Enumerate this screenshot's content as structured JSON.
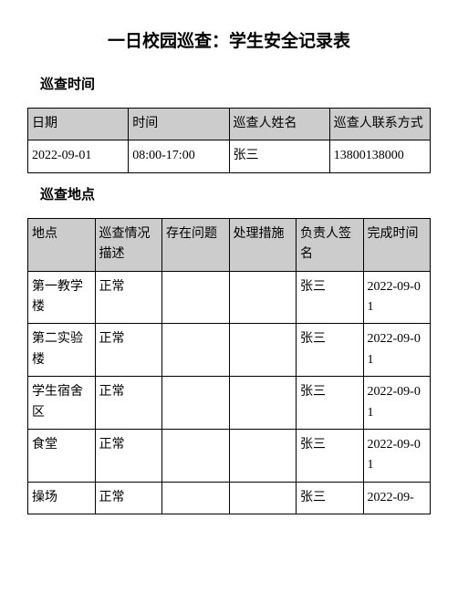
{
  "title": "一日校园巡查：学生安全记录表",
  "section1": {
    "header": "巡查时间",
    "columns": [
      "日期",
      "时间",
      "巡查人姓名",
      "巡查人联系方式"
    ],
    "rows": [
      [
        "2022-09-01",
        "08:00-17:00",
        "张三",
        "13800138000"
      ]
    ]
  },
  "section2": {
    "header": "巡查地点",
    "columns": [
      "地点",
      "巡查情况描述",
      "存在问题",
      "处理措施",
      "负责人签名",
      "完成时间"
    ],
    "rows": [
      [
        "第一教学楼",
        "正常",
        "",
        "",
        "张三",
        "2022-09-01"
      ],
      [
        "第二实验楼",
        "正常",
        "",
        "",
        "张三",
        "2022-09-01"
      ],
      [
        "学生宿舍区",
        "正常",
        "",
        "",
        "张三",
        "2022-09-01"
      ],
      [
        "食堂",
        "正常",
        "",
        "",
        "张三",
        "2022-09-01"
      ],
      [
        "操场",
        "正常",
        "",
        "",
        "张三",
        "2022-09-"
      ]
    ]
  },
  "style": {
    "title_fontsize": "19px",
    "section_fontsize": "15px",
    "cell_fontsize": "14px",
    "header_bg": "#cccccc",
    "border_color": "#000000",
    "background": "#ffffff"
  }
}
